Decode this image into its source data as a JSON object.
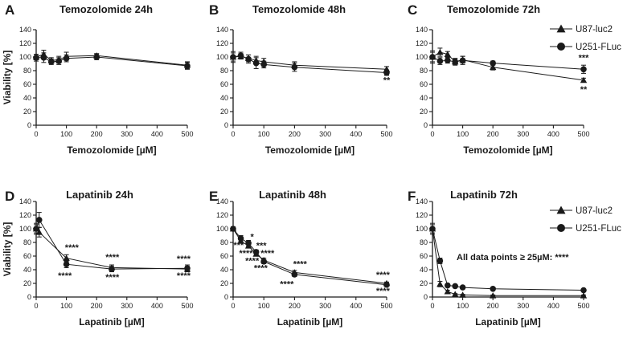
{
  "figure": {
    "y_axis_label": "Viability [%]"
  },
  "legends": [
    {
      "items": [
        {
          "label": "U87-luc2",
          "marker": "triangle"
        },
        {
          "label": "U251-FLuc",
          "marker": "circle"
        }
      ]
    },
    {
      "items": [
        {
          "label": "U87-luc2",
          "marker": "triangle"
        },
        {
          "label": "U251-FLuc",
          "marker": "circle"
        }
      ]
    }
  ],
  "chart_data": [
    {
      "type": "line",
      "panel": "A",
      "title": "Temozolomide 24h",
      "xlabel": "Temozolomide [µM]",
      "ylabel": "Viability [%]",
      "xlim": [
        0,
        500
      ],
      "ylim": [
        0,
        140
      ],
      "xticks": [
        0,
        100,
        200,
        300,
        400,
        500
      ],
      "yticks": [
        0,
        20,
        40,
        60,
        80,
        100,
        120,
        140
      ],
      "series": [
        {
          "name": "U87-luc2",
          "marker": "triangle",
          "x": [
            0,
            25,
            50,
            75,
            100,
            200,
            500
          ],
          "y": [
            100,
            104,
            95,
            96,
            101,
            102,
            88
          ],
          "err": [
            4,
            6,
            4,
            5,
            6,
            3,
            5
          ]
        },
        {
          "name": "U251-FLuc",
          "marker": "circle",
          "x": [
            0,
            25,
            50,
            75,
            100,
            200,
            500
          ],
          "y": [
            99,
            99,
            93,
            94,
            98,
            100,
            87
          ],
          "err": [
            5,
            7,
            4,
            5,
            5,
            4,
            5
          ]
        }
      ],
      "annotations": []
    },
    {
      "type": "line",
      "panel": "B",
      "title": "Temozolomide 48h",
      "xlabel": "Temozolomide [µM]",
      "ylabel": "",
      "xlim": [
        0,
        500
      ],
      "ylim": [
        0,
        140
      ],
      "xticks": [
        0,
        100,
        200,
        300,
        400,
        500
      ],
      "yticks": [
        0,
        20,
        40,
        60,
        80,
        100,
        120,
        140
      ],
      "series": [
        {
          "name": "U87-luc2",
          "marker": "triangle",
          "x": [
            0,
            25,
            50,
            75,
            100,
            200,
            500
          ],
          "y": [
            100,
            101,
            98,
            95,
            93,
            88,
            82
          ],
          "err": [
            6,
            4,
            5,
            6,
            5,
            5,
            4
          ]
        },
        {
          "name": "U251-FLuc",
          "marker": "circle",
          "x": [
            0,
            25,
            50,
            75,
            100,
            200,
            500
          ],
          "y": [
            100,
            102,
            97,
            91,
            89,
            85,
            77
          ],
          "err": [
            8,
            5,
            6,
            8,
            5,
            6,
            4
          ]
        }
      ],
      "annotations": [
        {
          "text": "**",
          "x": 500,
          "y": 62
        }
      ]
    },
    {
      "type": "line",
      "panel": "C",
      "title": "Temozolomide 72h",
      "xlabel": "Temozolomide [µM]",
      "ylabel": "",
      "xlim": [
        0,
        500
      ],
      "ylim": [
        0,
        140
      ],
      "xticks": [
        0,
        100,
        200,
        300,
        400,
        500
      ],
      "yticks": [
        0,
        20,
        40,
        60,
        80,
        100,
        120,
        140
      ],
      "series": [
        {
          "name": "U87-luc2",
          "marker": "triangle",
          "x": [
            0,
            25,
            50,
            75,
            100,
            200,
            500
          ],
          "y": [
            100,
            107,
            104,
            93,
            96,
            85,
            66
          ],
          "err": [
            7,
            6,
            4,
            4,
            5,
            4,
            3
          ]
        },
        {
          "name": "U251-FLuc",
          "marker": "circle",
          "x": [
            0,
            25,
            50,
            75,
            100,
            200,
            500
          ],
          "y": [
            100,
            94,
            95,
            93,
            95,
            91,
            82
          ],
          "err": [
            9,
            5,
            4,
            5,
            6,
            3,
            6
          ]
        }
      ],
      "annotations": [
        {
          "text": "***",
          "x": 500,
          "y": 95
        },
        {
          "text": "**",
          "x": 500,
          "y": 48
        }
      ]
    },
    {
      "type": "line",
      "panel": "D",
      "title": "Lapatinib 24h",
      "xlabel": "Lapatinib [µM]",
      "ylabel": "Viability [%]",
      "xlim": [
        0,
        500
      ],
      "ylim": [
        0,
        140
      ],
      "xticks": [
        0,
        100,
        200,
        300,
        400,
        500
      ],
      "yticks": [
        0,
        20,
        40,
        60,
        80,
        100,
        120,
        140
      ],
      "series": [
        {
          "name": "U87-luc2",
          "marker": "triangle",
          "x": [
            0,
            10,
            100,
            250,
            500
          ],
          "y": [
            100,
            95,
            57,
            43,
            41
          ],
          "err": [
            6,
            7,
            5,
            4,
            4
          ]
        },
        {
          "name": "U251-FLuc",
          "marker": "circle",
          "x": [
            0,
            10,
            100,
            250,
            500
          ],
          "y": [
            100,
            113,
            48,
            41,
            42
          ],
          "err": [
            8,
            11,
            5,
            4,
            5
          ]
        }
      ],
      "annotations": [
        {
          "text": "****",
          "x": 118,
          "y": 68
        },
        {
          "text": "****",
          "x": 95,
          "y": 27
        },
        {
          "text": "****",
          "x": 252,
          "y": 54
        },
        {
          "text": "****",
          "x": 252,
          "y": 25
        },
        {
          "text": "****",
          "x": 488,
          "y": 52
        },
        {
          "text": "****",
          "x": 488,
          "y": 27
        }
      ]
    },
    {
      "type": "line",
      "panel": "E",
      "title": "Lapatinib 48h",
      "xlabel": "Lapatinib [µM]",
      "ylabel": "",
      "xlim": [
        0,
        500
      ],
      "ylim": [
        0,
        140
      ],
      "xticks": [
        0,
        100,
        200,
        300,
        400,
        500
      ],
      "yticks": [
        0,
        20,
        40,
        60,
        80,
        100,
        120,
        140
      ],
      "series": [
        {
          "name": "U87-luc2",
          "marker": "triangle",
          "x": [
            0,
            25,
            50,
            75,
            100,
            200,
            500
          ],
          "y": [
            100,
            82,
            75,
            63,
            54,
            36,
            20
          ],
          "err": [
            3,
            3,
            3,
            3,
            3,
            3,
            2
          ]
        },
        {
          "name": "U251-FLuc",
          "marker": "circle",
          "x": [
            0,
            25,
            50,
            75,
            100,
            200,
            500
          ],
          "y": [
            100,
            86,
            79,
            66,
            52,
            33,
            18
          ],
          "err": [
            3,
            4,
            4,
            3,
            3,
            3,
            2
          ]
        }
      ],
      "annotations": [
        {
          "text": "*",
          "x": 62,
          "y": 84
        },
        {
          "text": "***",
          "x": 18,
          "y": 72
        },
        {
          "text": "***",
          "x": 92,
          "y": 71
        },
        {
          "text": "****",
          "x": 42,
          "y": 60
        },
        {
          "text": "****",
          "x": 112,
          "y": 60
        },
        {
          "text": "****",
          "x": 62,
          "y": 49
        },
        {
          "text": "****",
          "x": 90,
          "y": 38
        },
        {
          "text": "****",
          "x": 218,
          "y": 44
        },
        {
          "text": "****",
          "x": 175,
          "y": 15
        },
        {
          "text": "****",
          "x": 488,
          "y": 28
        },
        {
          "text": "****",
          "x": 488,
          "y": 5
        }
      ]
    },
    {
      "type": "line",
      "panel": "F",
      "title": "Lapatinib 72h",
      "xlabel": "Lapatinib [µM]",
      "ylabel": "",
      "xlim": [
        0,
        500
      ],
      "ylim": [
        0,
        140
      ],
      "xticks": [
        0,
        100,
        200,
        300,
        400,
        500
      ],
      "yticks": [
        0,
        20,
        40,
        60,
        80,
        100,
        120,
        140
      ],
      "series": [
        {
          "name": "U87-luc2",
          "marker": "triangle",
          "x": [
            0,
            25,
            50,
            75,
            100,
            200,
            500
          ],
          "y": [
            100,
            19,
            8,
            4,
            3,
            2,
            2
          ],
          "err": [
            8,
            4,
            2,
            1,
            1,
            1,
            1
          ]
        },
        {
          "name": "U251-FLuc",
          "marker": "circle",
          "x": [
            0,
            25,
            50,
            75,
            100,
            200,
            500
          ],
          "y": [
            100,
            53,
            17,
            16,
            14,
            12,
            10
          ],
          "err": [
            6,
            4,
            2,
            2,
            1,
            1,
            1
          ]
        }
      ],
      "annotations": [],
      "note": "All data points ≥ 25µM: ****"
    }
  ]
}
